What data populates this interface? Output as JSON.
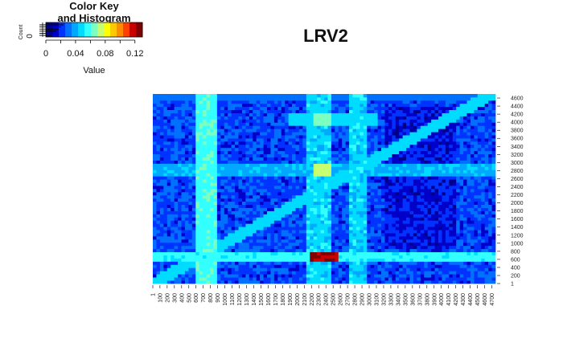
{
  "chart_data": {
    "type": "heatmap",
    "title": "LRV2",
    "color_key": {
      "title": "Color Key",
      "subtitle": "and Histogram",
      "ylabel": "Count",
      "y_tick": "0",
      "xlabel": "Value",
      "ticks": [
        "0",
        "0.04",
        "0.08",
        "0.12"
      ],
      "range": [
        0,
        0.13
      ],
      "colors": [
        "#00008b",
        "#0000c8",
        "#0033ff",
        "#0070ff",
        "#00a8ff",
        "#00dcff",
        "#33ffff",
        "#7dffc0",
        "#c8ff70",
        "#ffff00",
        "#ffc800",
        "#ff8c00",
        "#ff4000",
        "#c80000",
        "#7f0000"
      ]
    },
    "x_ticks": [
      "1",
      "100",
      "200",
      "300",
      "400",
      "500",
      "600",
      "700",
      "800",
      "900",
      "1000",
      "1100",
      "1200",
      "1300",
      "1400",
      "1500",
      "1600",
      "1700",
      "1800",
      "1900",
      "2000",
      "2100",
      "2200",
      "2300",
      "2400",
      "2500",
      "2600",
      "2700",
      "2800",
      "2900",
      "3000",
      "3100",
      "3200",
      "3300",
      "3400",
      "3500",
      "3600",
      "3700",
      "3800",
      "3900",
      "4000",
      "4100",
      "4200",
      "4300",
      "4400",
      "4500",
      "4600",
      "4700"
    ],
    "y_ticks": [
      "1",
      "200",
      "400",
      "600",
      "800",
      "1000",
      "1200",
      "1400",
      "1600",
      "1800",
      "2000",
      "2200",
      "2400",
      "2600",
      "2800",
      "3000",
      "3200",
      "3400",
      "3600",
      "3800",
      "4000",
      "4200",
      "4400",
      "4600"
    ],
    "x_range": [
      1,
      4750
    ],
    "y_range": [
      1,
      4700
    ],
    "grid": false
  }
}
